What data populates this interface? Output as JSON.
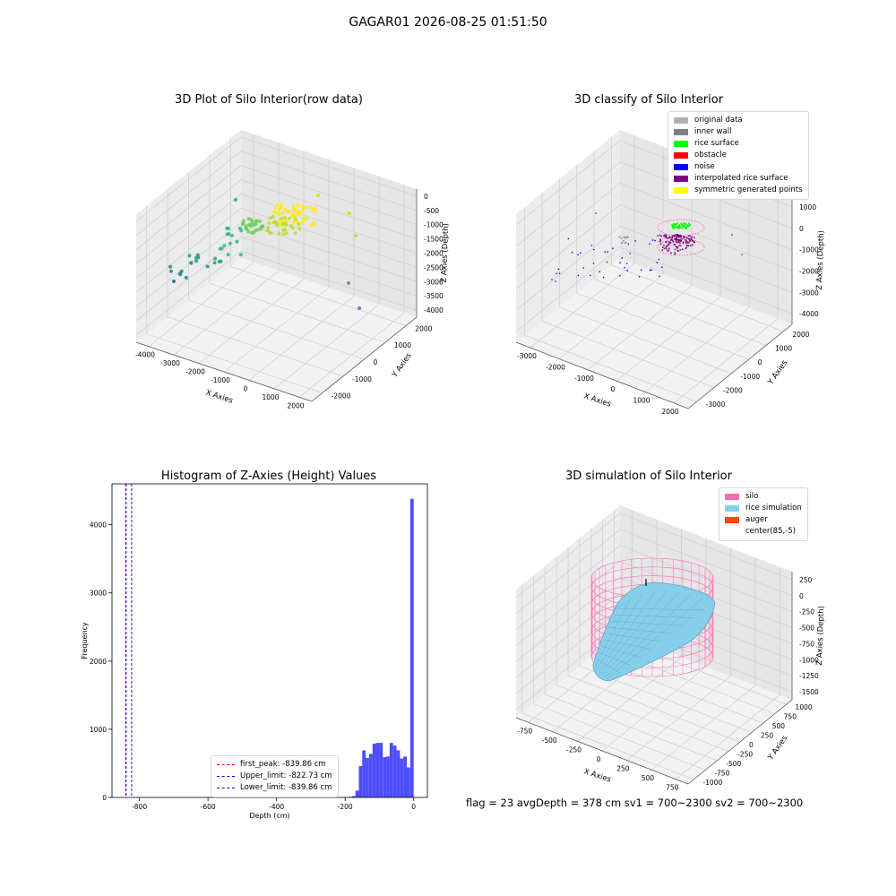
{
  "suptitle": "GAGAR01 2026-08-25 01:51:50",
  "footer": "flag = 23   avgDepth = 378 cm   sv1 = 700~2300   sv2 = 700~2300",
  "colors": {
    "original": "#b0b0b0",
    "inner_wall": "#808080",
    "rice_surface": "#00ff00",
    "obstacle": "#ff0000",
    "noise": "#0000ff",
    "interpolated": "#800080",
    "symmetric": "#ffff00",
    "silo": "#ff69b4",
    "rice_sim": "#87ceeb",
    "auger": "#ff4500",
    "hist_bar": "#4d4dff"
  },
  "chart_data": [
    {
      "type": "scatter",
      "title": "3D Plot of Silo Interior(row data)",
      "xlabel": "X Axies",
      "ylabel": "Y Axies",
      "zlabel": "Z Axies (Depth)",
      "xticks": [
        "-4000",
        "-3000",
        "-2000",
        "-1000",
        "0",
        "1000",
        "2000"
      ],
      "yticks": [
        "-2000",
        "-1000",
        "0",
        "1000",
        "2000"
      ],
      "zticks": [
        "0",
        "-500",
        "-1000",
        "-1500",
        "-2000",
        "-2500",
        "-3000",
        "-3500",
        "-4000"
      ],
      "grid": true
    },
    {
      "type": "scatter",
      "title": "3D classify of Silo Interior",
      "xlabel": "X Axies",
      "ylabel": "Y Axies",
      "zlabel": "Z Axies (Depth)",
      "xticks": [
        "-3000",
        "-2000",
        "-1000",
        "0",
        "1000",
        "2000"
      ],
      "yticks": [
        "-3000",
        "-2000",
        "-1000",
        "0",
        "1000",
        "2000"
      ],
      "zticks": [
        "1000",
        "0",
        "-1000",
        "-2000",
        "-3000",
        "-4000"
      ],
      "legend": [
        "original data",
        "inner wall",
        "rice surface",
        "obstacle",
        "noise",
        "interpolated rice surface",
        "symmetric generated points"
      ],
      "legend_placement": "top-right",
      "grid": true
    },
    {
      "type": "bar",
      "title": "Histogram of Z-Axies (Height) Values",
      "xlabel": "Depth (cm)",
      "ylabel": "Frequency",
      "xlim": [
        -880,
        40
      ],
      "ylim": [
        0,
        4600
      ],
      "xticks": [
        -800,
        -600,
        -400,
        -200,
        0
      ],
      "yticks": [
        0,
        1000,
        2000,
        3000,
        4000
      ],
      "bin_width": 10,
      "bins": [
        {
          "x": -400,
          "v": 3
        },
        {
          "x": -300,
          "v": 4
        },
        {
          "x": -270,
          "v": 5
        },
        {
          "x": -210,
          "v": 3
        },
        {
          "x": -200,
          "v": 5
        },
        {
          "x": -190,
          "v": 8
        },
        {
          "x": -180,
          "v": 20
        },
        {
          "x": -170,
          "v": 100
        },
        {
          "x": -160,
          "v": 460
        },
        {
          "x": -150,
          "v": 690
        },
        {
          "x": -140,
          "v": 580
        },
        {
          "x": -130,
          "v": 640
        },
        {
          "x": -120,
          "v": 790
        },
        {
          "x": -110,
          "v": 800
        },
        {
          "x": -100,
          "v": 800
        },
        {
          "x": -90,
          "v": 590
        },
        {
          "x": -80,
          "v": 600
        },
        {
          "x": -70,
          "v": 800
        },
        {
          "x": -60,
          "v": 760
        },
        {
          "x": -50,
          "v": 690
        },
        {
          "x": -40,
          "v": 570
        },
        {
          "x": -30,
          "v": 600
        },
        {
          "x": -20,
          "v": 440
        },
        {
          "x": -10,
          "v": 4380
        }
      ],
      "vlines": [
        {
          "name": "first_peak: -839.86 cm",
          "x": -839.86,
          "color": "#ff0000"
        },
        {
          "name": "Upper_limit: -822.73 cm",
          "x": -822.73,
          "color": "#0000ff"
        },
        {
          "name": "Lower_limit: -839.86 cm",
          "x": -839.86,
          "color": "#0000ff"
        }
      ],
      "legend_placement": "lower-center"
    },
    {
      "type": "surface",
      "title": "3D simulation of Silo Interior",
      "xlabel": "X Axies",
      "ylabel": "Y Axies",
      "zlabel": "Z Axies (Depth)",
      "xticks": [
        "-750",
        "-500",
        "-250",
        "0",
        "250",
        "500",
        "750"
      ],
      "yticks": [
        "-1000",
        "-750",
        "-500",
        "-250",
        "0",
        "250",
        "500",
        "750",
        "1000"
      ],
      "zticks": [
        "250",
        "0",
        "-250",
        "-500",
        "-750",
        "-1000",
        "-1250",
        "-1500"
      ],
      "legend": [
        "silo",
        "rice simulation",
        "auger",
        "center(85,-5)"
      ],
      "legend_placement": "top-right",
      "grid": true
    }
  ]
}
